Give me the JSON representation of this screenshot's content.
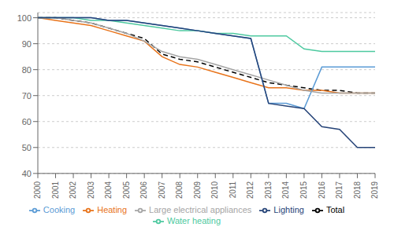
{
  "chart_data": {
    "type": "line",
    "x": [
      2000,
      2001,
      2002,
      2003,
      2004,
      2005,
      2006,
      2007,
      2008,
      2009,
      2010,
      2011,
      2012,
      2013,
      2014,
      2015,
      2016,
      2017,
      2018,
      2019
    ],
    "xlim": [
      2000,
      2019
    ],
    "xticks": [
      2000,
      2001,
      2002,
      2003,
      2004,
      2005,
      2006,
      2007,
      2008,
      2009,
      2010,
      2011,
      2012,
      2013,
      2014,
      2015,
      2016,
      2017,
      2018,
      2019
    ],
    "ylim": [
      40,
      102
    ],
    "yticks": [
      40,
      50,
      60,
      70,
      80,
      90,
      100
    ],
    "grid": true,
    "legend": "bottom",
    "series": [
      {
        "name": "Total",
        "color": "#000000",
        "line_style": "dashed",
        "values": [
          100,
          100,
          99,
          98,
          96,
          94,
          92,
          86,
          84,
          83,
          81,
          79,
          77,
          75,
          74,
          73,
          72,
          72,
          71,
          71
        ]
      },
      {
        "name": "Heating",
        "color": "#E8731A",
        "line_style": "solid",
        "values": [
          100,
          99,
          98,
          97,
          95,
          93,
          91,
          85,
          82,
          81,
          79,
          77,
          75,
          73,
          73,
          72,
          72,
          71,
          71,
          71
        ]
      },
      {
        "name": "Water heating",
        "color": "#4EC9A0",
        "line_style": "solid",
        "values": [
          100,
          100,
          100,
          99,
          99,
          98,
          97,
          96,
          95,
          95,
          94,
          94,
          93,
          93,
          93,
          88,
          87,
          87,
          87,
          87
        ]
      },
      {
        "name": "Cooking",
        "color": "#5B9BD5",
        "line_style": "solid",
        "values": [
          100,
          100,
          100,
          100,
          99,
          99,
          98,
          97,
          96,
          95,
          94,
          93,
          92,
          67,
          67,
          65,
          81,
          81,
          81,
          81
        ]
      },
      {
        "name": "Large electrical appliances",
        "color": "#A5A5A5",
        "line_style": "solid",
        "values": [
          100,
          100,
          99,
          98,
          96,
          94,
          91,
          87,
          85,
          84,
          82,
          80,
          78,
          76,
          74,
          72,
          71,
          71,
          71,
          71
        ]
      },
      {
        "name": "Lighting",
        "color": "#264478",
        "line_style": "solid",
        "values": [
          100,
          100,
          100,
          100,
          99,
          99,
          98,
          97,
          96,
          95,
          94,
          93,
          92,
          67,
          66,
          65,
          58,
          57,
          50,
          50
        ]
      }
    ]
  }
}
